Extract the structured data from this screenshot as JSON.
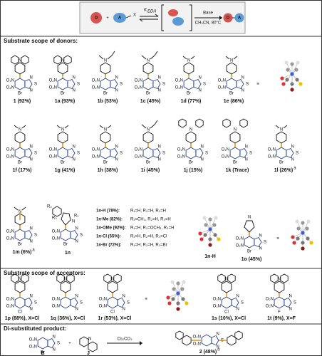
{
  "scheme": {
    "donor": "D",
    "acceptor": "A",
    "leaving": "X",
    "keda": "K",
    "keda_sub": "EDA",
    "base": "Base",
    "conditions": "CH₃CN, 80°C"
  },
  "atoms": {
    "nitro": "O₂N",
    "bromo": "Br",
    "n": "N",
    "s": "S",
    "o": "O",
    "cl": "Cl",
    "f": "F",
    "cn": "CN",
    "oh": "OH",
    "r1": "R₁",
    "r2": "R₂",
    "r3": "R₃",
    "nh": "N"
  },
  "equiv": "≡",
  "plus": "+",
  "donors": {
    "title": "Substrate scope of donors:",
    "compounds": [
      {
        "label": "1 (92%)"
      },
      {
        "label": "1a (93%)"
      },
      {
        "label": "1b (53%)"
      },
      {
        "label": "1c (45%)"
      },
      {
        "label": "1d (77%)"
      },
      {
        "label": "1e (86%)"
      },
      {
        "label": "1f (17%)"
      },
      {
        "label": "1g (41%)"
      },
      {
        "label": "1h (38%)"
      },
      {
        "label": "1i (45%)"
      },
      {
        "label": "1j (15%)"
      },
      {
        "label": "1k (Trace)"
      },
      {
        "label": "1l (26%)",
        "note": "a"
      },
      {
        "label": "1m (6%)",
        "note": "a"
      },
      {
        "label": "1n"
      },
      {
        "label": "1n-H"
      },
      {
        "label": "1o (45%)"
      }
    ],
    "variants": [
      {
        "name": "1n-H (78%):",
        "subs": "R₁=H, R₂=H, R₃=H"
      },
      {
        "name": "1n-Me (82%):",
        "subs": "R₁=CH₃, R₂=H, R₃=H"
      },
      {
        "name": "1n-OMe (92%):",
        "subs": "R₁=H, R₂=OCH₃, R₃=H"
      },
      {
        "name": "1n-Cl (55%):",
        "subs": "R₁=H, R₂=H, R₃=Cl"
      },
      {
        "name": "1n-Br (72%):",
        "subs": "R₁=H, R₂=H, R₃=Br"
      }
    ]
  },
  "acceptors": {
    "title": "Substrate scope of acceptors:",
    "compounds": [
      {
        "label": "1p (88%), X=Cl"
      },
      {
        "label": "1q (36%), X=Cl"
      },
      {
        "label": "1r (53%), X=Cl"
      },
      {
        "label": "1s (10%), X=Cl"
      },
      {
        "label": "1t (9%), X=F"
      }
    ]
  },
  "di": {
    "title": "Di-substituted product:",
    "reagent": "Cs₂CO₃",
    "b": "B",
    "j": "J",
    "product": "2 (48%)",
    "note": "b"
  }
}
